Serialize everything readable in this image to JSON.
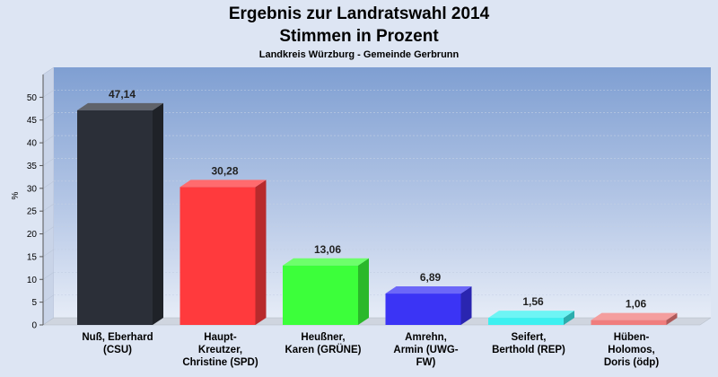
{
  "chart_data": {
    "type": "bar",
    "title_line1": "Ergebnis zur Landratswahl 2014",
    "title_line2": "Stimmen in Prozent",
    "subtitle": "Landkreis Würzburg - Gemeinde Gerbrunn",
    "ylabel": "%",
    "ylim": [
      0,
      55
    ],
    "yticks": [
      0,
      5,
      10,
      15,
      20,
      25,
      30,
      35,
      40,
      45,
      50
    ],
    "categories": [
      [
        "Nuß, Eberhard",
        "(CSU)"
      ],
      [
        "Haupt-",
        "Kreutzer,",
        "Christine (SPD)"
      ],
      [
        "Heußner,",
        "Karen (GRÜNE)"
      ],
      [
        "Amrehn,",
        "Armin (UWG-",
        "FW)"
      ],
      [
        "Seifert,",
        "Berthold (REP)"
      ],
      [
        "Hüben-",
        "Holomos,",
        "Doris (ödp)"
      ]
    ],
    "values": [
      47.14,
      30.28,
      13.06,
      6.89,
      1.56,
      1.06
    ],
    "value_labels": [
      "47,14",
      "30,28",
      "13,06",
      "6,89",
      "1,56",
      "1,06"
    ],
    "colors": [
      "#2b2f38",
      "#ff3a3d",
      "#3cff3a",
      "#3b34f5",
      "#3df0f0",
      "#f07d7d"
    ],
    "grid": true,
    "legend": "none"
  }
}
